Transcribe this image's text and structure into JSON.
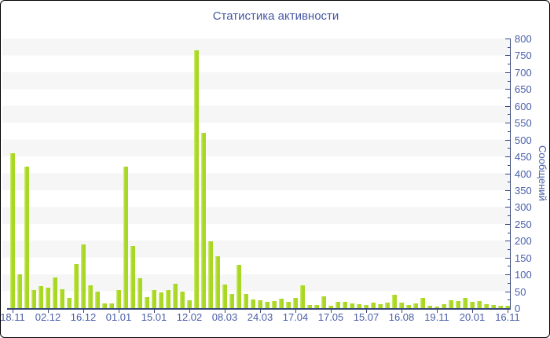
{
  "chart": {
    "title": "Статистика активности",
    "y_axis_title": "Сообщений"
  },
  "colors": {
    "bar-main": "#a8d724",
    "bar-highlight": "#c9e765",
    "title-text": "#4858a3",
    "axis-text": "#4a5fa8",
    "axis-line": "#39467a",
    "stripe": "#f6f6f6",
    "background": "#ffffff",
    "frame-border": "#000000"
  },
  "chart_data": {
    "type": "bar",
    "title": "Статистика активности",
    "xlabel": "",
    "ylabel": "Сообщений",
    "ylim": [
      0,
      800
    ],
    "y_tick_step": 50,
    "y_minor_tick_step": 25,
    "y_tick_labels": [
      "0",
      "50",
      "100",
      "150",
      "200",
      "250",
      "300",
      "350",
      "400",
      "450",
      "500",
      "550",
      "600",
      "650",
      "700",
      "750",
      "800"
    ],
    "y_axis_side": "right",
    "grid": "alternating-horizontal-bands",
    "legend": "none",
    "x_tick_labels": [
      "18.11",
      "02.12",
      "16.12",
      "01.01",
      "15.01",
      "12.02",
      "08.03",
      "24.03",
      "17.04",
      "17.05",
      "15.07",
      "16.08",
      "19.11",
      "20.01",
      "16.11"
    ],
    "x_label_every_n_bars": 5,
    "values": [
      460,
      100,
      420,
      53,
      65,
      60,
      91,
      56,
      30,
      130,
      190,
      67,
      50,
      14,
      14,
      53,
      420,
      185,
      89,
      33,
      53,
      47,
      53,
      72,
      49,
      24,
      766,
      519,
      198,
      155,
      70,
      42,
      128,
      43,
      26,
      24,
      18,
      22,
      28,
      18,
      30,
      68,
      9,
      10,
      36,
      6,
      19,
      18,
      14,
      12,
      10,
      16,
      12,
      16,
      39,
      16,
      10,
      14,
      30,
      6,
      5,
      12,
      24,
      20,
      30,
      18,
      22,
      12,
      9,
      8,
      6
    ]
  }
}
